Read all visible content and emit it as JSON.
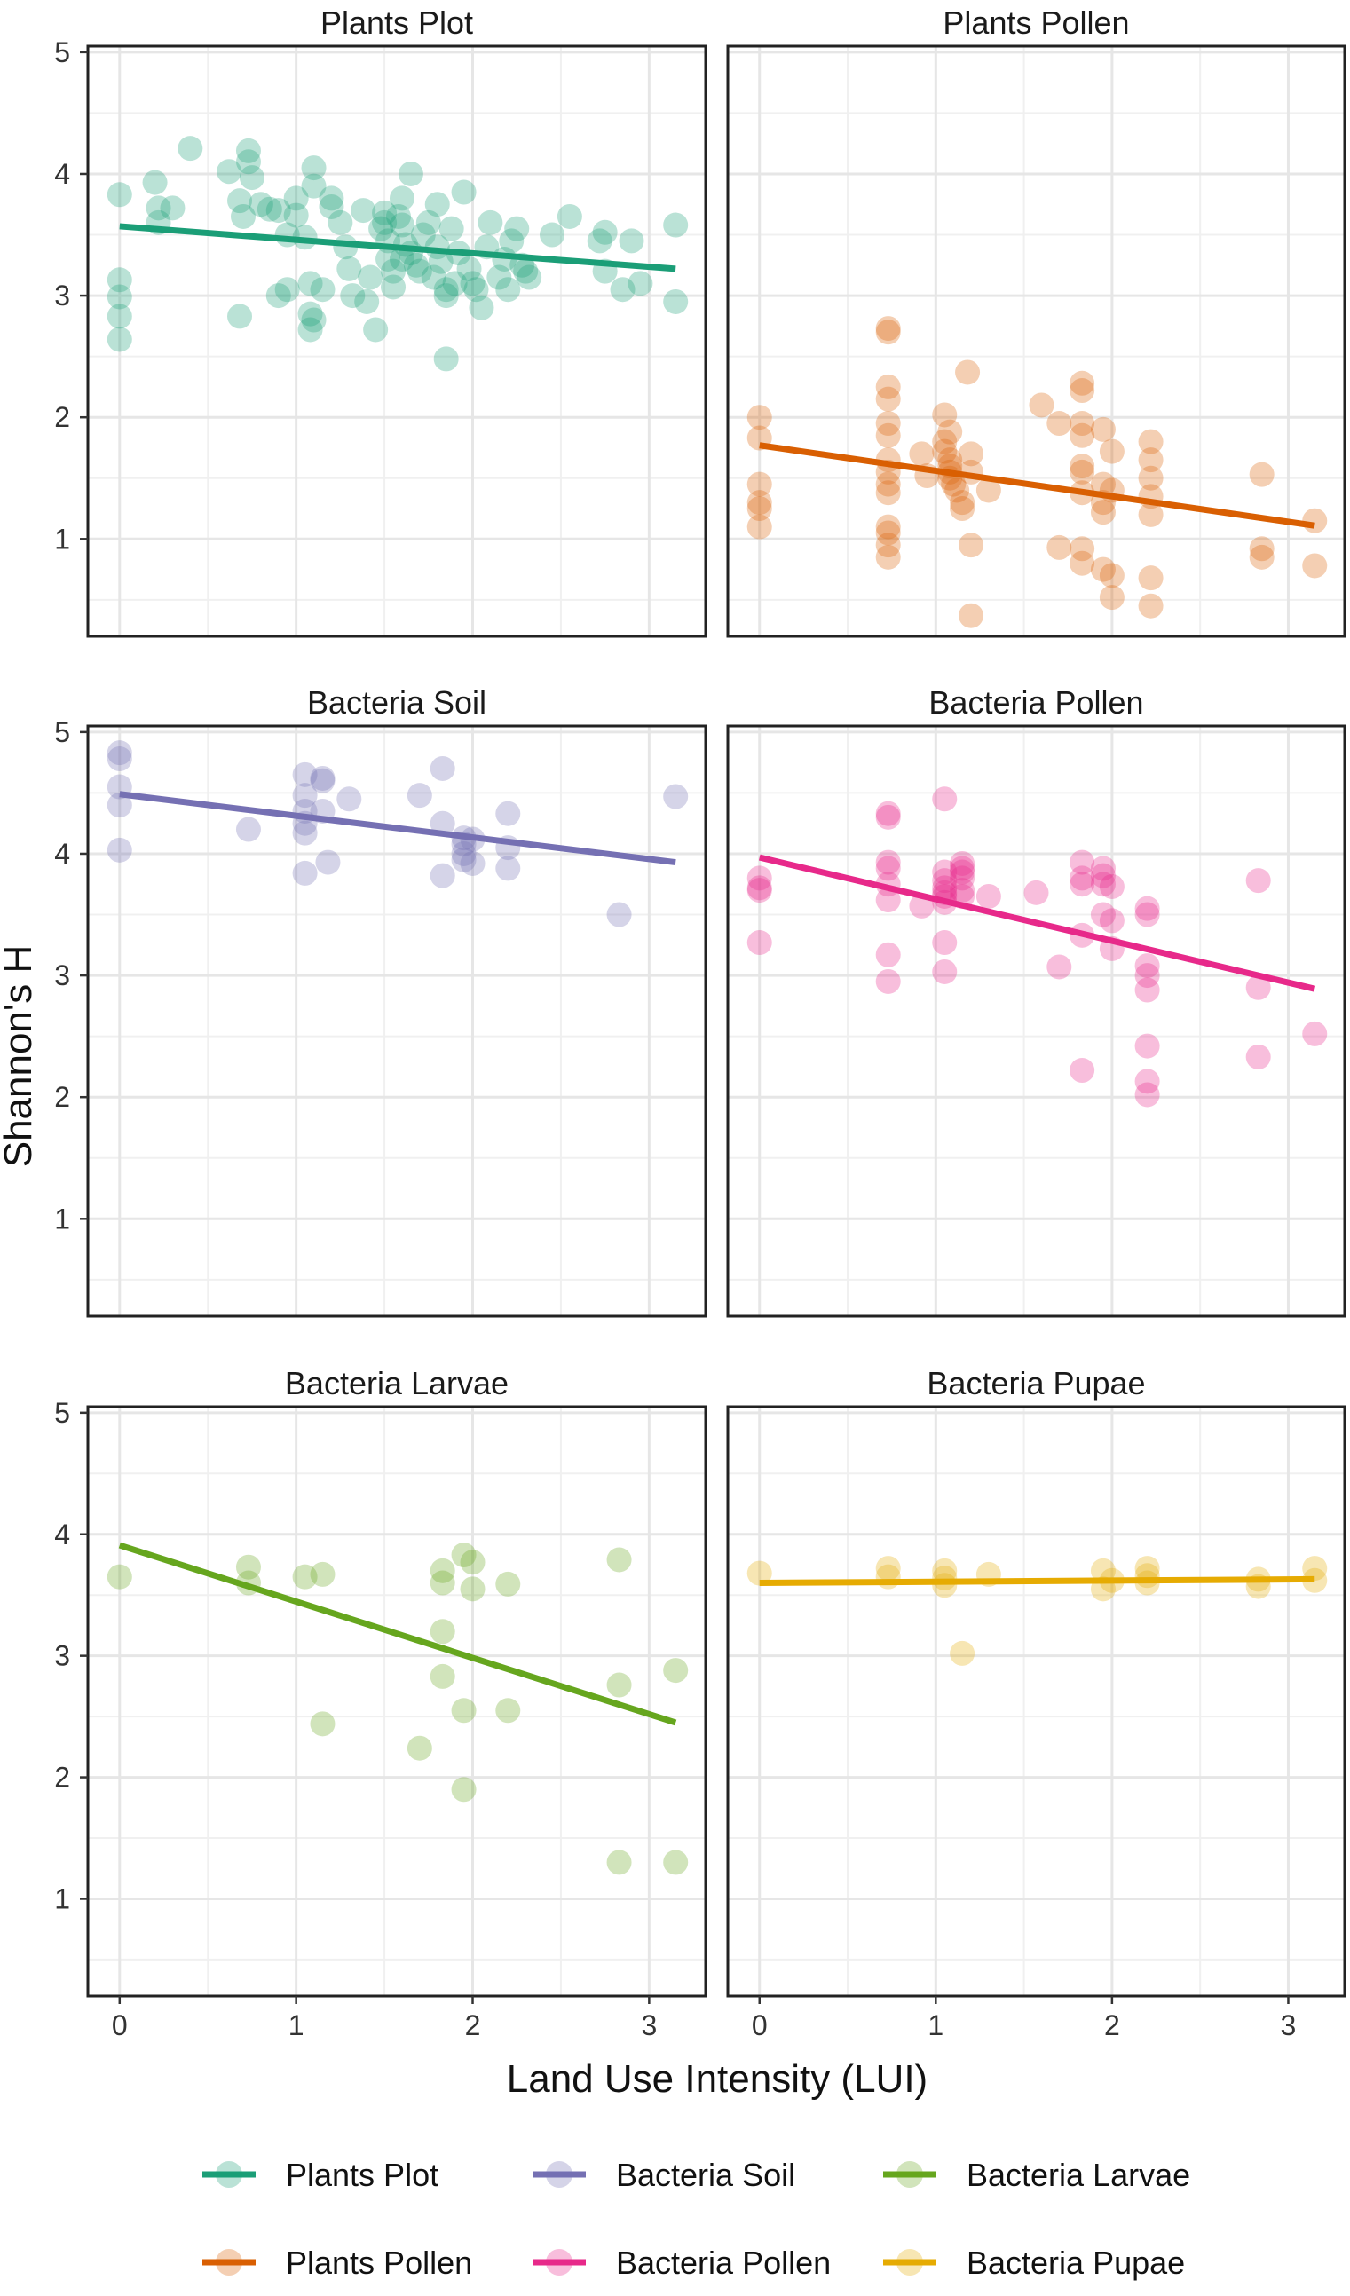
{
  "chart_data": {
    "type": "scatter",
    "title": "",
    "xlabel": "Land Use Intensity (LUI)",
    "ylabel": "Shannon's H",
    "xlim": [
      -0.18,
      3.32
    ],
    "ylim": [
      0.2,
      5.05
    ],
    "x_ticks": [
      "0",
      "1",
      "2",
      "3"
    ],
    "y_ticks": [
      "1",
      "2",
      "3",
      "4",
      "5"
    ],
    "legend_position": "bottom",
    "panels": [
      {
        "name": "Plants Plot",
        "color": "#1B9E77",
        "trend": [
          [
            0,
            3.57
          ],
          [
            3.15,
            3.22
          ]
        ],
        "points": [
          [
            0,
            3.83
          ],
          [
            0,
            3.13
          ],
          [
            0,
            2.99
          ],
          [
            0,
            2.83
          ],
          [
            0,
            2.64
          ],
          [
            0.2,
            3.93
          ],
          [
            0.22,
            3.72
          ],
          [
            0.3,
            3.72
          ],
          [
            0.4,
            4.21
          ],
          [
            0.22,
            3.6
          ],
          [
            0.62,
            4.02
          ],
          [
            0.68,
            3.78
          ],
          [
            0.7,
            3.65
          ],
          [
            0.73,
            4.19
          ],
          [
            0.73,
            4.1
          ],
          [
            0.75,
            3.97
          ],
          [
            0.8,
            3.75
          ],
          [
            0.85,
            3.71
          ],
          [
            0.9,
            3.7
          ],
          [
            0.95,
            3.5
          ],
          [
            0.68,
            2.83
          ],
          [
            0.9,
            3.0
          ],
          [
            0.95,
            3.05
          ],
          [
            1.0,
            3.8
          ],
          [
            1.0,
            3.66
          ],
          [
            1.05,
            3.48
          ],
          [
            1.1,
            4.05
          ],
          [
            1.1,
            3.9
          ],
          [
            1.08,
            3.1
          ],
          [
            1.08,
            2.85
          ],
          [
            1.08,
            2.72
          ],
          [
            1.1,
            2.8
          ],
          [
            1.15,
            3.05
          ],
          [
            1.2,
            3.8
          ],
          [
            1.2,
            3.73
          ],
          [
            1.25,
            3.6
          ],
          [
            1.28,
            3.4
          ],
          [
            1.3,
            3.22
          ],
          [
            1.32,
            3.0
          ],
          [
            1.38,
            3.7
          ],
          [
            1.4,
            2.95
          ],
          [
            1.42,
            3.15
          ],
          [
            1.45,
            2.72
          ],
          [
            1.48,
            3.55
          ],
          [
            1.5,
            3.68
          ],
          [
            1.5,
            3.6
          ],
          [
            1.52,
            3.45
          ],
          [
            1.52,
            3.3
          ],
          [
            1.55,
            3.2
          ],
          [
            1.55,
            3.07
          ],
          [
            1.58,
            3.65
          ],
          [
            1.6,
            3.8
          ],
          [
            1.6,
            3.58
          ],
          [
            1.62,
            3.42
          ],
          [
            1.65,
            3.35
          ],
          [
            1.65,
            4.0
          ],
          [
            1.68,
            3.25
          ],
          [
            1.7,
            3.2
          ],
          [
            1.72,
            3.5
          ],
          [
            1.75,
            3.6
          ],
          [
            1.78,
            3.15
          ],
          [
            1.8,
            3.75
          ],
          [
            1.8,
            3.4
          ],
          [
            1.82,
            3.28
          ],
          [
            1.85,
            3.0
          ],
          [
            1.85,
            2.48
          ],
          [
            1.88,
            3.55
          ],
          [
            1.9,
            3.1
          ],
          [
            1.92,
            3.35
          ],
          [
            1.95,
            3.85
          ],
          [
            1.98,
            3.22
          ],
          [
            2.0,
            3.1
          ],
          [
            2.02,
            3.05
          ],
          [
            2.05,
            2.9
          ],
          [
            2.08,
            3.4
          ],
          [
            2.1,
            3.6
          ],
          [
            2.15,
            3.15
          ],
          [
            2.18,
            3.3
          ],
          [
            2.2,
            3.05
          ],
          [
            2.22,
            3.45
          ],
          [
            2.25,
            3.55
          ],
          [
            2.28,
            3.25
          ],
          [
            2.3,
            3.2
          ],
          [
            2.32,
            3.15
          ],
          [
            2.45,
            3.5
          ],
          [
            2.55,
            3.65
          ],
          [
            2.72,
            3.45
          ],
          [
            2.75,
            3.2
          ],
          [
            2.75,
            3.52
          ],
          [
            2.85,
            3.05
          ],
          [
            2.9,
            3.45
          ],
          [
            2.95,
            3.1
          ],
          [
            3.15,
            3.58
          ],
          [
            3.15,
            2.95
          ],
          [
            1.85,
            3.05
          ],
          [
            1.6,
            3.3
          ]
        ]
      },
      {
        "name": "Plants Pollen",
        "color": "#D95F02",
        "trend": [
          [
            0,
            1.77
          ],
          [
            3.15,
            1.11
          ]
        ],
        "points": [
          [
            0,
            2.0
          ],
          [
            0,
            1.83
          ],
          [
            0,
            1.45
          ],
          [
            0,
            1.3
          ],
          [
            0,
            1.25
          ],
          [
            0,
            1.1
          ],
          [
            0.73,
            2.73
          ],
          [
            0.73,
            2.7
          ],
          [
            0.73,
            2.25
          ],
          [
            0.73,
            2.15
          ],
          [
            0.73,
            1.95
          ],
          [
            0.73,
            1.85
          ],
          [
            0.73,
            1.65
          ],
          [
            0.73,
            1.55
          ],
          [
            0.73,
            1.45
          ],
          [
            0.73,
            1.38
          ],
          [
            0.73,
            1.1
          ],
          [
            0.73,
            1.05
          ],
          [
            0.73,
            0.95
          ],
          [
            0.73,
            0.85
          ],
          [
            0.92,
            1.7
          ],
          [
            0.95,
            1.52
          ],
          [
            1.05,
            2.02
          ],
          [
            1.05,
            1.8
          ],
          [
            1.05,
            1.72
          ],
          [
            1.08,
            1.88
          ],
          [
            1.08,
            1.65
          ],
          [
            1.08,
            1.6
          ],
          [
            1.08,
            1.55
          ],
          [
            1.08,
            1.5
          ],
          [
            1.1,
            1.45
          ],
          [
            1.12,
            1.4
          ],
          [
            1.15,
            1.3
          ],
          [
            1.15,
            1.25
          ],
          [
            1.18,
            2.37
          ],
          [
            1.2,
            1.7
          ],
          [
            1.2,
            1.55
          ],
          [
            1.2,
            0.95
          ],
          [
            1.2,
            0.37
          ],
          [
            1.3,
            1.4
          ],
          [
            1.6,
            2.1
          ],
          [
            1.7,
            1.95
          ],
          [
            1.7,
            0.93
          ],
          [
            1.83,
            2.28
          ],
          [
            1.83,
            2.22
          ],
          [
            1.83,
            1.95
          ],
          [
            1.83,
            1.85
          ],
          [
            1.83,
            1.6
          ],
          [
            1.83,
            1.55
          ],
          [
            1.83,
            1.38
          ],
          [
            1.83,
            0.92
          ],
          [
            1.83,
            0.8
          ],
          [
            1.95,
            1.9
          ],
          [
            1.95,
            1.45
          ],
          [
            1.95,
            1.3
          ],
          [
            1.95,
            1.22
          ],
          [
            1.95,
            0.75
          ],
          [
            2.0,
            1.72
          ],
          [
            2.0,
            1.4
          ],
          [
            2.0,
            0.7
          ],
          [
            2.0,
            0.52
          ],
          [
            2.22,
            1.8
          ],
          [
            2.22,
            1.65
          ],
          [
            2.22,
            1.5
          ],
          [
            2.22,
            1.35
          ],
          [
            2.22,
            1.2
          ],
          [
            2.22,
            0.68
          ],
          [
            2.22,
            0.45
          ],
          [
            2.85,
            1.53
          ],
          [
            2.85,
            0.92
          ],
          [
            2.85,
            0.85
          ],
          [
            3.15,
            1.15
          ],
          [
            3.15,
            0.78
          ]
        ]
      },
      {
        "name": "Bacteria Soil",
        "color": "#7570B3",
        "trend": [
          [
            0,
            4.49
          ],
          [
            3.15,
            3.93
          ]
        ],
        "points": [
          [
            0,
            4.83
          ],
          [
            0,
            4.78
          ],
          [
            0,
            4.55
          ],
          [
            0,
            4.4
          ],
          [
            0,
            4.03
          ],
          [
            0.73,
            4.2
          ],
          [
            1.05,
            4.65
          ],
          [
            1.05,
            4.48
          ],
          [
            1.05,
            4.35
          ],
          [
            1.05,
            4.25
          ],
          [
            1.05,
            4.17
          ],
          [
            1.05,
            3.84
          ],
          [
            1.15,
            4.62
          ],
          [
            1.15,
            4.6
          ],
          [
            1.15,
            4.35
          ],
          [
            1.18,
            3.93
          ],
          [
            1.3,
            4.45
          ],
          [
            1.7,
            4.48
          ],
          [
            1.83,
            4.7
          ],
          [
            1.83,
            4.25
          ],
          [
            1.83,
            3.82
          ],
          [
            1.95,
            4.13
          ],
          [
            1.95,
            4.08
          ],
          [
            1.95,
            4.0
          ],
          [
            1.95,
            3.95
          ],
          [
            2.0,
            4.12
          ],
          [
            2.0,
            3.92
          ],
          [
            2.2,
            4.33
          ],
          [
            2.2,
            4.05
          ],
          [
            2.2,
            3.88
          ],
          [
            2.83,
            3.5
          ],
          [
            3.15,
            4.47
          ]
        ]
      },
      {
        "name": "Bacteria Pollen",
        "color": "#E7298A",
        "trend": [
          [
            0,
            3.97
          ],
          [
            3.15,
            2.89
          ]
        ],
        "points": [
          [
            0,
            3.8
          ],
          [
            0,
            3.72
          ],
          [
            0,
            3.7
          ],
          [
            0,
            3.27
          ],
          [
            0.73,
            4.33
          ],
          [
            0.73,
            4.3
          ],
          [
            0.73,
            3.93
          ],
          [
            0.73,
            3.88
          ],
          [
            0.73,
            3.75
          ],
          [
            0.73,
            3.62
          ],
          [
            0.73,
            3.17
          ],
          [
            0.73,
            2.95
          ],
          [
            0.92,
            3.57
          ],
          [
            1.05,
            4.45
          ],
          [
            1.05,
            3.85
          ],
          [
            1.05,
            3.78
          ],
          [
            1.05,
            3.72
          ],
          [
            1.05,
            3.68
          ],
          [
            1.05,
            3.65
          ],
          [
            1.05,
            3.6
          ],
          [
            1.05,
            3.27
          ],
          [
            1.05,
            3.03
          ],
          [
            1.15,
            3.92
          ],
          [
            1.15,
            3.88
          ],
          [
            1.15,
            3.85
          ],
          [
            1.15,
            3.8
          ],
          [
            1.15,
            3.7
          ],
          [
            1.15,
            3.65
          ],
          [
            1.3,
            3.65
          ],
          [
            1.57,
            3.68
          ],
          [
            1.7,
            3.07
          ],
          [
            1.83,
            3.93
          ],
          [
            1.83,
            3.8
          ],
          [
            1.83,
            3.75
          ],
          [
            1.83,
            3.33
          ],
          [
            1.83,
            2.22
          ],
          [
            1.95,
            3.88
          ],
          [
            1.95,
            3.82
          ],
          [
            1.95,
            3.75
          ],
          [
            1.95,
            3.5
          ],
          [
            2.0,
            3.73
          ],
          [
            2.0,
            3.45
          ],
          [
            2.0,
            3.22
          ],
          [
            2.2,
            3.55
          ],
          [
            2.2,
            3.5
          ],
          [
            2.2,
            3.08
          ],
          [
            2.2,
            3.0
          ],
          [
            2.2,
            2.88
          ],
          [
            2.2,
            2.42
          ],
          [
            2.2,
            2.13
          ],
          [
            2.2,
            2.02
          ],
          [
            2.83,
            3.78
          ],
          [
            2.83,
            2.9
          ],
          [
            2.83,
            2.33
          ],
          [
            3.15,
            2.52
          ]
        ]
      },
      {
        "name": "Bacteria Larvae",
        "color": "#66A61E",
        "trend": [
          [
            0,
            3.91
          ],
          [
            3.15,
            2.45
          ]
        ],
        "points": [
          [
            0,
            3.65
          ],
          [
            0.73,
            3.73
          ],
          [
            0.73,
            3.6
          ],
          [
            1.05,
            3.65
          ],
          [
            1.15,
            3.67
          ],
          [
            1.15,
            2.44
          ],
          [
            1.7,
            2.24
          ],
          [
            1.83,
            3.7
          ],
          [
            1.83,
            3.6
          ],
          [
            1.83,
            3.2
          ],
          [
            1.83,
            2.83
          ],
          [
            1.95,
            3.83
          ],
          [
            1.95,
            2.55
          ],
          [
            1.95,
            1.9
          ],
          [
            2.0,
            3.77
          ],
          [
            2.0,
            3.55
          ],
          [
            2.2,
            3.59
          ],
          [
            2.2,
            2.55
          ],
          [
            2.83,
            3.79
          ],
          [
            2.83,
            2.76
          ],
          [
            2.83,
            1.3
          ],
          [
            3.15,
            2.88
          ],
          [
            3.15,
            1.3
          ]
        ]
      },
      {
        "name": "Bacteria Pupae",
        "color": "#E6AB02",
        "trend": [
          [
            0,
            3.6
          ],
          [
            3.15,
            3.63
          ]
        ],
        "points": [
          [
            0,
            3.68
          ],
          [
            0.73,
            3.72
          ],
          [
            0.73,
            3.65
          ],
          [
            1.05,
            3.7
          ],
          [
            1.05,
            3.64
          ],
          [
            1.05,
            3.58
          ],
          [
            1.15,
            3.02
          ],
          [
            1.3,
            3.67
          ],
          [
            1.95,
            3.7
          ],
          [
            1.95,
            3.55
          ],
          [
            2.0,
            3.62
          ],
          [
            2.2,
            3.72
          ],
          [
            2.2,
            3.66
          ],
          [
            2.2,
            3.6
          ],
          [
            2.83,
            3.63
          ],
          [
            2.83,
            3.57
          ],
          [
            3.15,
            3.72
          ],
          [
            3.15,
            3.62
          ]
        ]
      }
    ]
  }
}
